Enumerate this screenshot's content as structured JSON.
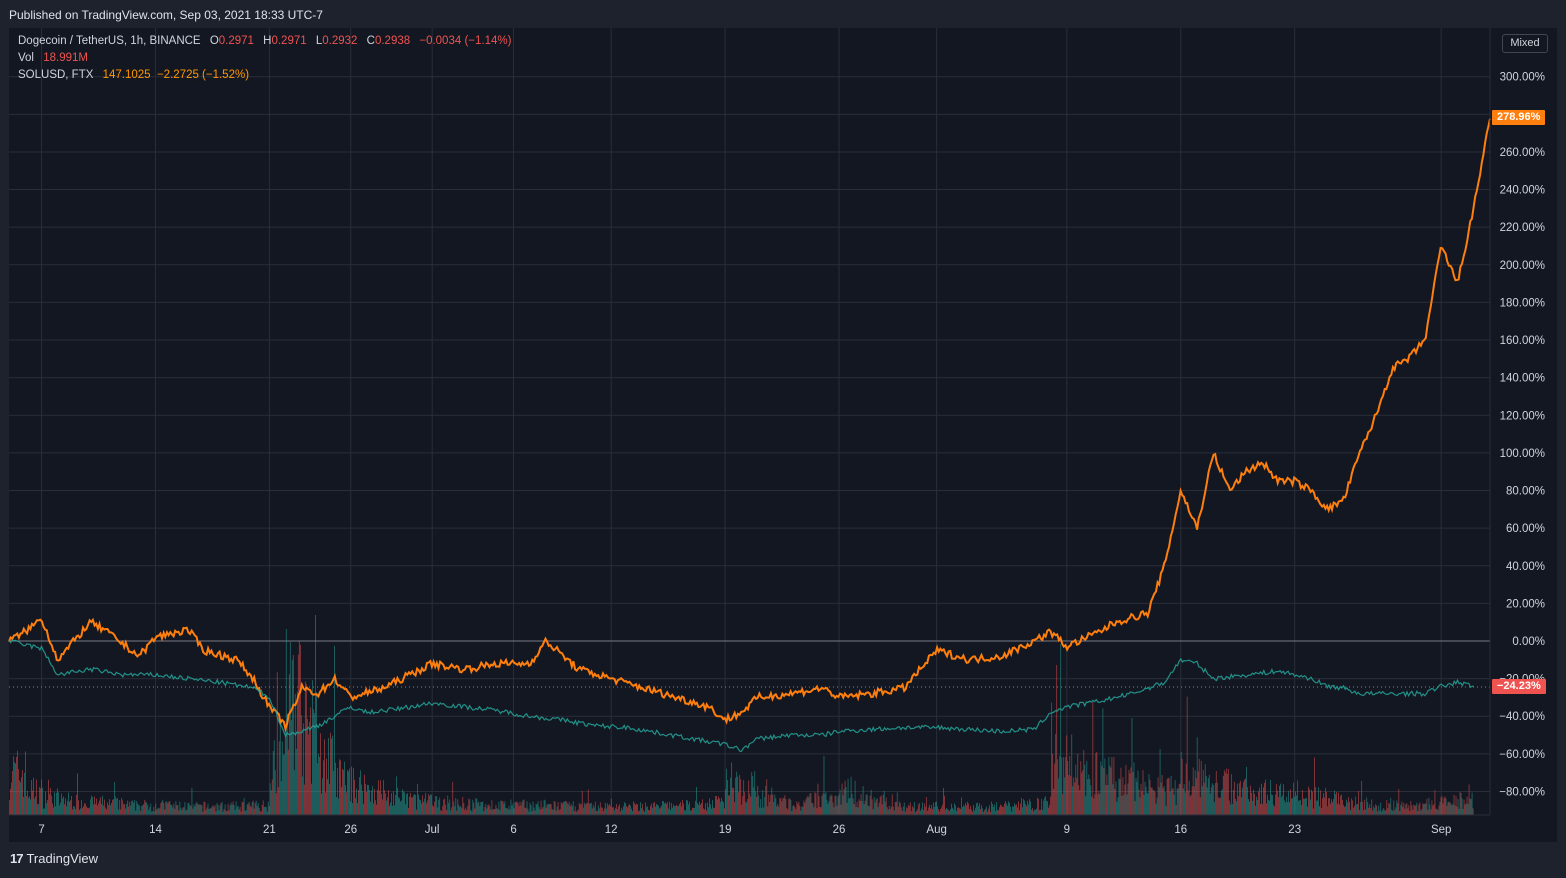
{
  "header": {
    "published": "Published on TradingView.com, Sep 03, 2021 18:33 UTC-7"
  },
  "legend": {
    "main_symbol": "Dogecoin / TetherUS, 1h, BINANCE",
    "o_label": "O",
    "o": "0.2971",
    "h_label": "H",
    "h": "0.2971",
    "l_label": "L",
    "l": "0.2932",
    "c_label": "C",
    "c": "0.2938",
    "change": "−0.0034 (−1.14%)",
    "vol_label": "Vol",
    "vol": "18.991M",
    "compare_symbol": "SOLUSD, FTX",
    "compare_values": "147.1025  −2.2725 (−1.52%)"
  },
  "scale_button": "Mixed",
  "tags": {
    "solusd": "278.96%",
    "doge": "−24.23%"
  },
  "footer": {
    "brand": "TradingView"
  },
  "colors": {
    "sol": "#ff7f0e",
    "doge_up": "#26a69a",
    "doge_down": "#ef5350",
    "bg": "#131722",
    "grid": "#2a2e39"
  },
  "chart_data": {
    "type": "line",
    "title": "",
    "xlabel": "",
    "ylabel": "",
    "ylim": [
      -93,
      315
    ],
    "y_ticks": [
      "300.00%",
      "280.00%",
      "260.00%",
      "240.00%",
      "220.00%",
      "200.00%",
      "180.00%",
      "160.00%",
      "140.00%",
      "120.00%",
      "100.00%",
      "80.00%",
      "60.00%",
      "40.00%",
      "20.00%",
      "0.00%",
      "−20.00%",
      "−40.00%",
      "−60.00%",
      "−80.00%"
    ],
    "y_tick_values": [
      300,
      280,
      260,
      240,
      220,
      200,
      180,
      160,
      140,
      120,
      100,
      80,
      60,
      40,
      20,
      0,
      -20,
      -40,
      -60,
      -80
    ],
    "x_range": [
      "2021-06-05",
      "2021-09-04"
    ],
    "x_ticks": [
      {
        "label": "7",
        "date": "2021-06-07"
      },
      {
        "label": "14",
        "date": "2021-06-14"
      },
      {
        "label": "21",
        "date": "2021-06-21"
      },
      {
        "label": "26",
        "date": "2021-06-26"
      },
      {
        "label": "Jul",
        "date": "2021-07-01"
      },
      {
        "label": "6",
        "date": "2021-07-06"
      },
      {
        "label": "12",
        "date": "2021-07-12"
      },
      {
        "label": "19",
        "date": "2021-07-19"
      },
      {
        "label": "26",
        "date": "2021-07-26"
      },
      {
        "label": "Aug",
        "date": "2021-08-01"
      },
      {
        "label": "9",
        "date": "2021-08-09"
      },
      {
        "label": "16",
        "date": "2021-08-16"
      },
      {
        "label": "23",
        "date": "2021-08-23"
      },
      {
        "label": "Sep",
        "date": "2021-09-01"
      }
    ],
    "series": [
      {
        "name": "SOLUSD, FTX",
        "x": [
          "2021-06-05",
          "2021-06-06",
          "2021-06-07",
          "2021-06-08",
          "2021-06-10",
          "2021-06-11",
          "2021-06-13",
          "2021-06-14",
          "2021-06-16",
          "2021-06-17",
          "2021-06-19",
          "2021-06-20",
          "2021-06-21",
          "2021-06-22",
          "2021-06-23",
          "2021-06-24",
          "2021-06-25",
          "2021-06-26",
          "2021-06-28",
          "2021-07-01",
          "2021-07-03",
          "2021-07-05",
          "2021-07-07",
          "2021-07-08",
          "2021-07-10",
          "2021-07-12",
          "2021-07-14",
          "2021-07-16",
          "2021-07-18",
          "2021-07-19",
          "2021-07-20",
          "2021-07-21",
          "2021-07-23",
          "2021-07-25",
          "2021-07-26",
          "2021-07-28",
          "2021-07-30",
          "2021-08-01",
          "2021-08-03",
          "2021-08-05",
          "2021-08-07",
          "2021-08-08",
          "2021-08-09",
          "2021-08-11",
          "2021-08-12",
          "2021-08-14",
          "2021-08-15",
          "2021-08-16",
          "2021-08-17",
          "2021-08-18",
          "2021-08-19",
          "2021-08-20",
          "2021-08-21",
          "2021-08-22",
          "2021-08-23",
          "2021-08-24",
          "2021-08-25",
          "2021-08-26",
          "2021-08-27",
          "2021-08-28",
          "2021-08-29",
          "2021-08-30",
          "2021-08-31",
          "2021-09-01",
          "2021-09-02",
          "2021-09-03",
          "2021-09-04"
        ],
        "values": [
          0,
          5,
          12,
          -10,
          10,
          5,
          -8,
          2,
          6,
          -5,
          -10,
          -20,
          -35,
          -45,
          -25,
          -28,
          -20,
          -30,
          -25,
          -12,
          -15,
          -12,
          -12,
          0,
          -15,
          -20,
          -25,
          -30,
          -35,
          -42,
          -38,
          -30,
          -28,
          -25,
          -30,
          -28,
          -25,
          -5,
          -10,
          -8,
          0,
          5,
          -3,
          5,
          10,
          15,
          40,
          80,
          60,
          100,
          80,
          90,
          95,
          85,
          85,
          80,
          70,
          75,
          100,
          120,
          145,
          150,
          160,
          210,
          190,
          230,
          279
        ]
      },
      {
        "name": "Dogecoin / TetherUS, 1h, BINANCE",
        "x": [
          "2021-06-05",
          "2021-06-06",
          "2021-06-07",
          "2021-06-08",
          "2021-06-10",
          "2021-06-12",
          "2021-06-14",
          "2021-06-16",
          "2021-06-18",
          "2021-06-20",
          "2021-06-21",
          "2021-06-22",
          "2021-06-23",
          "2021-06-24",
          "2021-06-25",
          "2021-06-26",
          "2021-06-27",
          "2021-06-29",
          "2021-07-01",
          "2021-07-03",
          "2021-07-05",
          "2021-07-07",
          "2021-07-09",
          "2021-07-11",
          "2021-07-13",
          "2021-07-15",
          "2021-07-17",
          "2021-07-19",
          "2021-07-20",
          "2021-07-21",
          "2021-07-23",
          "2021-07-25",
          "2021-07-26",
          "2021-07-28",
          "2021-07-30",
          "2021-08-01",
          "2021-08-03",
          "2021-08-05",
          "2021-08-07",
          "2021-08-08",
          "2021-08-09",
          "2021-08-11",
          "2021-08-13",
          "2021-08-15",
          "2021-08-16",
          "2021-08-17",
          "2021-08-18",
          "2021-08-20",
          "2021-08-22",
          "2021-08-24",
          "2021-08-25",
          "2021-08-26",
          "2021-08-27",
          "2021-08-29",
          "2021-08-31",
          "2021-09-01",
          "2021-09-02",
          "2021-09-03"
        ],
        "values": [
          0,
          -2,
          -4,
          -18,
          -15,
          -18,
          -18,
          -20,
          -22,
          -25,
          -30,
          -50,
          -48,
          -45,
          -40,
          -35,
          -38,
          -36,
          -33,
          -35,
          -37,
          -40,
          -42,
          -45,
          -46,
          -49,
          -52,
          -55,
          -58,
          -52,
          -50,
          -50,
          -48,
          -47,
          -46,
          -46,
          -47,
          -48,
          -47,
          -38,
          -35,
          -32,
          -28,
          -22,
          -10,
          -12,
          -20,
          -18,
          -16,
          -20,
          -24,
          -25,
          -28,
          -28,
          -28,
          -24,
          -22,
          -24
        ]
      }
    ],
    "volume_series": {
      "name": "Vol",
      "x": [
        "2021-06-05",
        "2021-06-06",
        "2021-06-07",
        "2021-06-08",
        "2021-06-10",
        "2021-06-12",
        "2021-06-14",
        "2021-06-16",
        "2021-06-18",
        "2021-06-20",
        "2021-06-21",
        "2021-06-22",
        "2021-06-23",
        "2021-06-24",
        "2021-06-25",
        "2021-06-26",
        "2021-06-28",
        "2021-07-01",
        "2021-07-04",
        "2021-07-07",
        "2021-07-10",
        "2021-07-13",
        "2021-07-16",
        "2021-07-18",
        "2021-07-19",
        "2021-07-21",
        "2021-07-23",
        "2021-07-26",
        "2021-07-29",
        "2021-08-01",
        "2021-08-04",
        "2021-08-07",
        "2021-08-08",
        "2021-08-09",
        "2021-08-11",
        "2021-08-13",
        "2021-08-15",
        "2021-08-16",
        "2021-08-18",
        "2021-08-20",
        "2021-08-22",
        "2021-08-24",
        "2021-08-26",
        "2021-08-28",
        "2021-08-30",
        "2021-09-01",
        "2021-09-02",
        "2021-09-03"
      ],
      "values": [
        0.35,
        0.2,
        0.15,
        0.12,
        0.1,
        0.08,
        0.08,
        0.07,
        0.07,
        0.08,
        0.5,
        1.0,
        0.7,
        0.45,
        0.3,
        0.25,
        0.15,
        0.1,
        0.08,
        0.08,
        0.07,
        0.07,
        0.08,
        0.1,
        0.3,
        0.15,
        0.08,
        0.2,
        0.07,
        0.07,
        0.07,
        0.1,
        0.45,
        0.4,
        0.3,
        0.25,
        0.2,
        0.35,
        0.25,
        0.2,
        0.18,
        0.15,
        0.1,
        0.08,
        0.08,
        0.1,
        0.12,
        0.08
      ]
    },
    "reference_line": 0,
    "grid": true,
    "legend": "top-left"
  }
}
